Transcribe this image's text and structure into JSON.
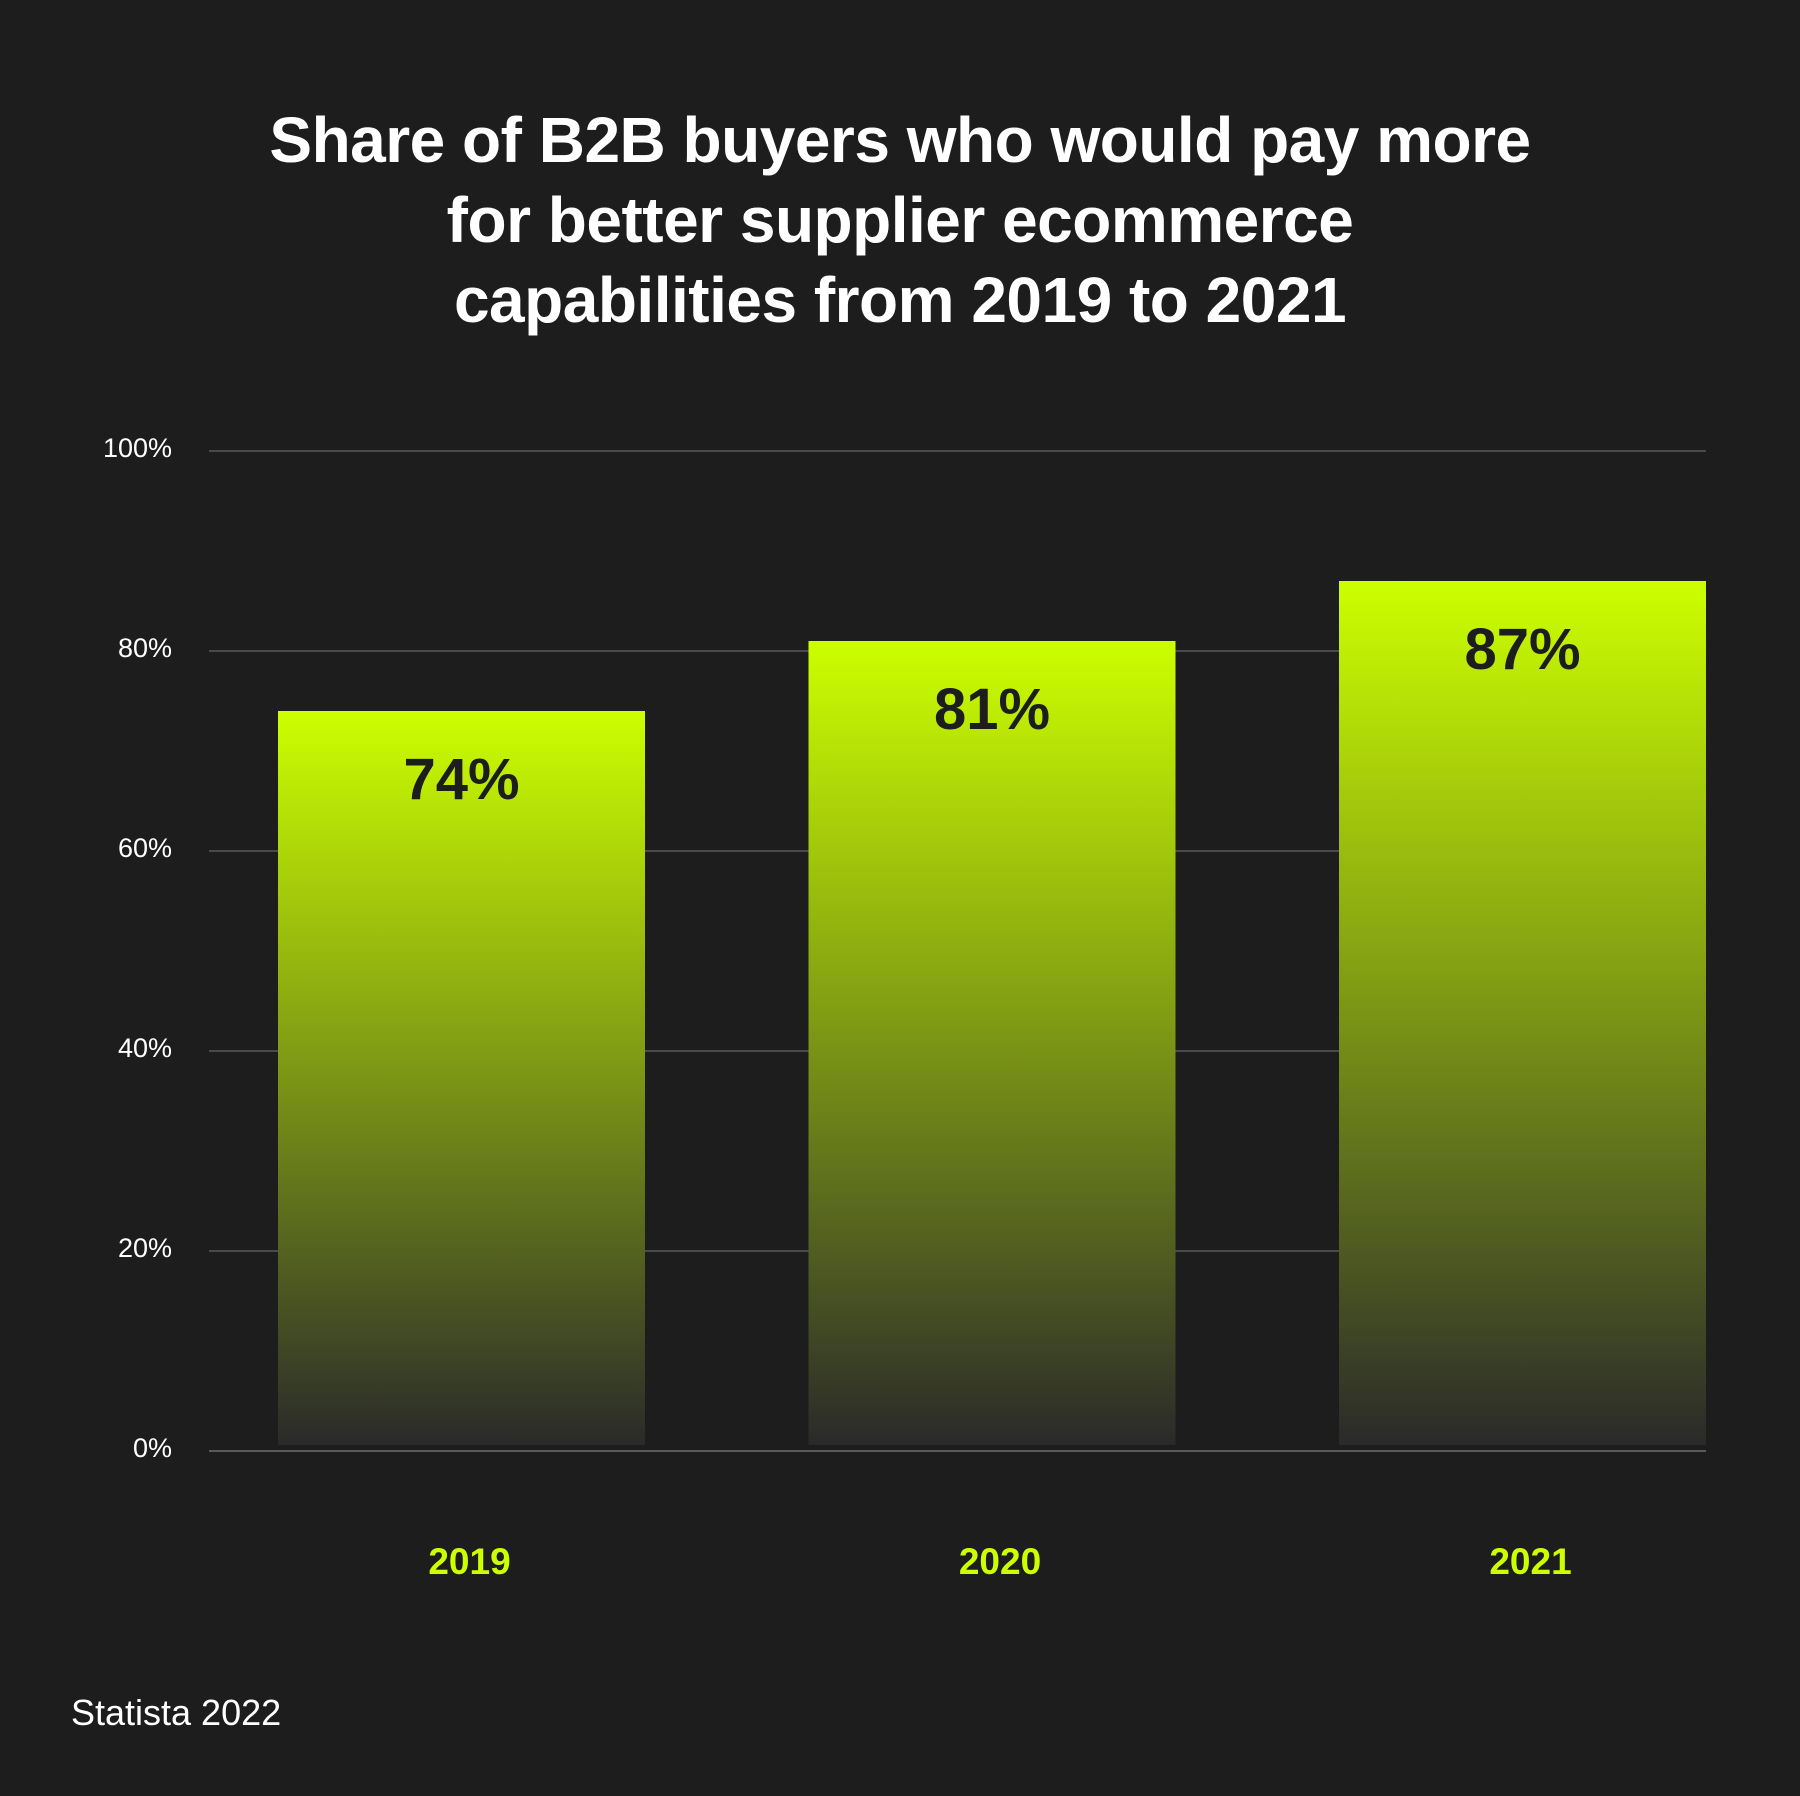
{
  "chart_data": {
    "type": "bar",
    "title_lines": [
      "Share of B2B buyers who would pay more",
      "for better supplier ecommerce",
      "capabilities from 2019 to 2021"
    ],
    "categories": [
      "2019",
      "2020",
      "2021"
    ],
    "values": [
      74,
      81,
      87
    ],
    "data_labels": [
      "74%",
      "81%",
      "87%"
    ],
    "ylim": [
      0,
      100
    ],
    "yticks": [
      0,
      20,
      40,
      60,
      80,
      100
    ],
    "ytick_labels": [
      "0%",
      "20%",
      "40%",
      "60%",
      "80%",
      "100%"
    ],
    "grid": true,
    "xlabel": "",
    "ylabel": ""
  },
  "colors": {
    "background": "#1d1d1d",
    "accent": "#ccff00",
    "bar_bottom": "#2a2a2a",
    "grid": "#4a4a4a",
    "label_dark": "#1d1d1d"
  },
  "footer": {
    "source": "Statista 2022"
  }
}
